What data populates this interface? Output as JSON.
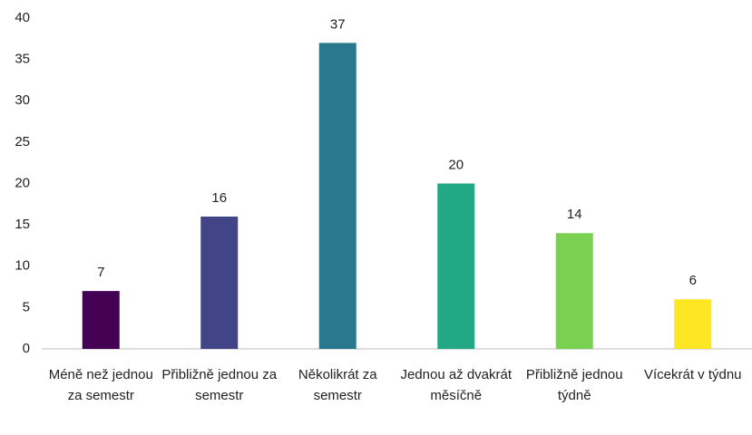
{
  "chart_data": {
    "type": "bar",
    "categories": [
      "Méně než jednou za semestr",
      "Přibližně jednou za semestr",
      "Několikrát za semestr",
      "Jednou až dvakrát měsíčně",
      "Přibližně jednou týdně",
      "Vícekrát v týdnu"
    ],
    "values": [
      7,
      16,
      37,
      20,
      14,
      6
    ],
    "colors": [
      "#440154",
      "#414487",
      "#2a788e",
      "#22a884",
      "#7ad151",
      "#fde725"
    ],
    "ylim": [
      0,
      40
    ],
    "yticks": [
      0,
      5,
      10,
      15,
      20,
      25,
      30,
      35,
      40
    ],
    "grid": false
  }
}
